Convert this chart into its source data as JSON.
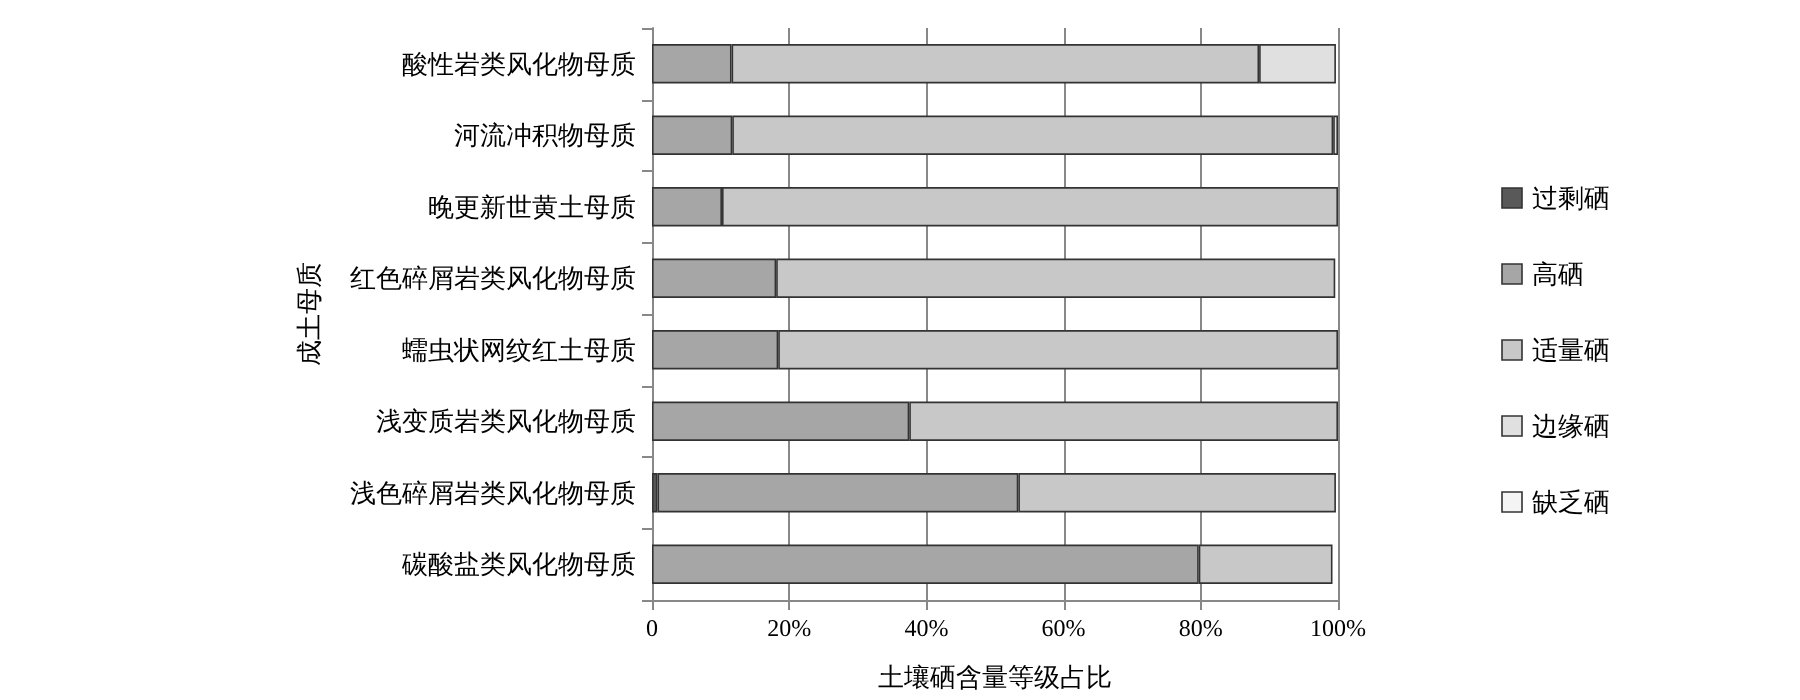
{
  "chart_data": {
    "type": "bar",
    "orientation": "horizontal",
    "stacked": true,
    "xlabel": "土壤硒含量等级占比",
    "ylabel": "成土母质",
    "categories": [
      "酸性岩类风化物母质",
      "河流冲积物母质",
      "晚更新世黄土母质",
      "红色碎屑岩类风化物母质",
      "蠕虫状网纹红土母质",
      "浅变质岩类风化物母质",
      "浅色碎屑岩类风化物母质",
      "碳酸盐类风化物母质"
    ],
    "series": [
      {
        "name": "过剩硒",
        "color": "#595959",
        "values": [
          null,
          0,
          0,
          0,
          0,
          0,
          0.8,
          null
        ]
      },
      {
        "name": "高硒",
        "color": "#a6a6a6",
        "values": [
          11.6,
          11.7,
          10.2,
          18.1,
          18.4,
          37.5,
          52.6,
          79.7
        ]
      },
      {
        "name": "适量硒",
        "color": "#c8c8c8",
        "values": [
          76.9,
          87.6,
          89.8,
          81.5,
          81.6,
          62.5,
          46.3,
          19.5
        ]
      },
      {
        "name": "边缘硒",
        "color": "#e0e0e0",
        "values": [
          11.2,
          0.7,
          0,
          null,
          0,
          0,
          null,
          null
        ]
      },
      {
        "name": "缺乏硒",
        "color": "#f4f4f4",
        "values": [
          null,
          null,
          null,
          null,
          null,
          null,
          null,
          null
        ]
      }
    ],
    "xlim": [
      0,
      100
    ],
    "xticks": [
      {
        "value": 0,
        "label": "0"
      },
      {
        "value": 20,
        "label": "20%"
      },
      {
        "value": 40,
        "label": "40%"
      },
      {
        "value": 60,
        "label": "60%"
      },
      {
        "value": 80,
        "label": "80%"
      },
      {
        "value": 100,
        "label": "100%"
      }
    ],
    "grid": "x",
    "legend": "right"
  }
}
